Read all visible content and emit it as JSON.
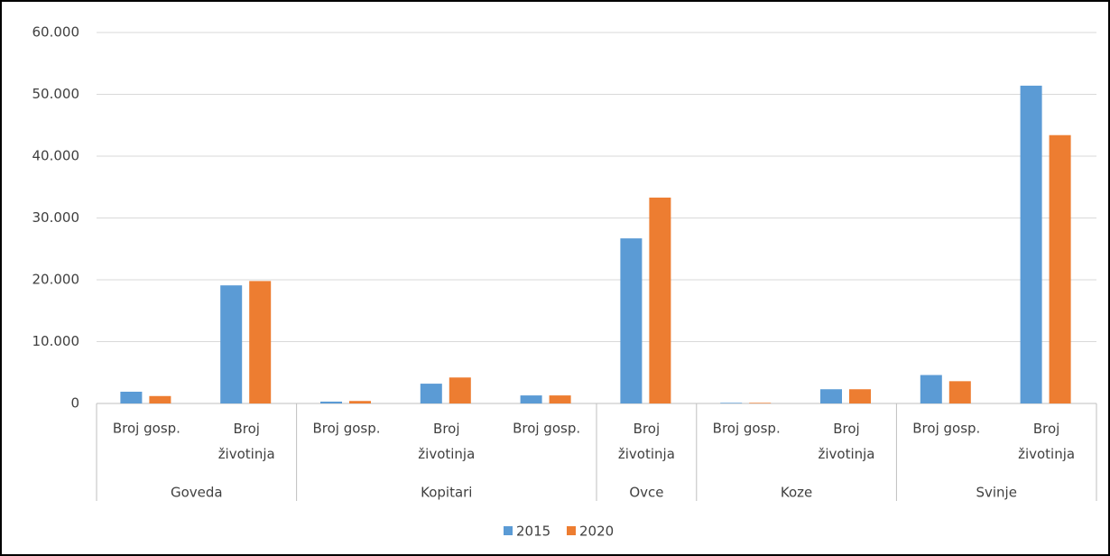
{
  "chart_data": {
    "type": "bar",
    "categories": [
      "Broj gosp.",
      "Broj životinja",
      "Broj gosp.",
      "Broj životinja",
      "Broj gosp.",
      "Broj životinja",
      "Broj gosp.",
      "Broj životinja",
      "Broj gosp.",
      "Broj životinja"
    ],
    "groups": [
      {
        "label": "Goveda",
        "count": 2
      },
      {
        "label": "Kopitari",
        "count": 3
      },
      {
        "label": "Ovce",
        "count": 1
      },
      {
        "label": "Koze",
        "count": 2
      },
      {
        "label": "Svinje",
        "count": 2
      }
    ],
    "series": [
      {
        "name": "2015",
        "color": "#5b9bd5",
        "values": [
          1900,
          19100,
          300,
          3200,
          1300,
          26700,
          100,
          2300,
          4600,
          51400
        ]
      },
      {
        "name": "2020",
        "color": "#ed7d31",
        "values": [
          1200,
          19800,
          400,
          4200,
          1300,
          33300,
          100,
          2300,
          3600,
          43400
        ]
      }
    ],
    "ylim": [
      0,
      60000
    ],
    "yticks": [
      0,
      {
        "value": 10000,
        "label": "10.000"
      },
      {
        "value": 20000,
        "label": "20.000"
      },
      {
        "value": 30000,
        "label": "30.000"
      },
      {
        "value": 40000,
        "label": "40.000"
      },
      {
        "value": 50000,
        "label": "50.000"
      },
      {
        "value": 60000,
        "label": "60.000"
      }
    ],
    "grid": true,
    "legend": "bottom"
  }
}
